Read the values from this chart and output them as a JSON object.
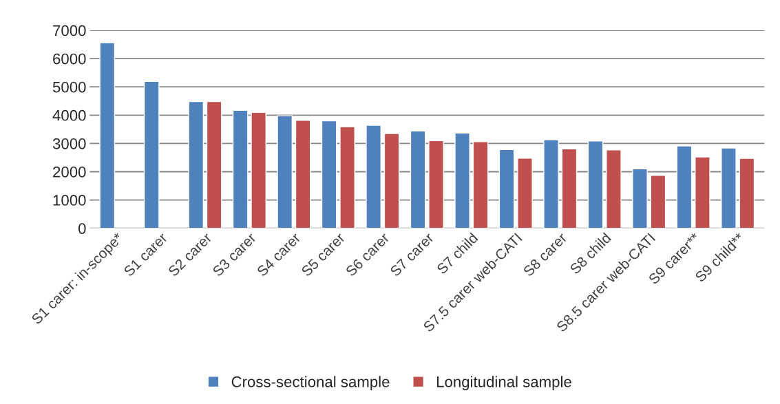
{
  "chart_data": {
    "type": "bar",
    "categories": [
      "S1 carer: in-scope*",
      "S1 carer",
      "S2 carer",
      "S3 carer",
      "S4 carer",
      "S5 carer",
      "S6 carer",
      "S7 carer",
      "S7 child",
      "S7.5 carer web-CATI",
      "S8 carer",
      "S8 child",
      "S8.5 carer web-CATI",
      "S9 carer**",
      "S9 child**"
    ],
    "series": [
      {
        "name": "Cross-sectional sample",
        "color": "#4f81bd",
        "values": [
          6560,
          5190,
          4480,
          4170,
          3980,
          3800,
          3640,
          3440,
          3370,
          2780,
          3130,
          3090,
          2100,
          2910,
          2840
        ]
      },
      {
        "name": "Longitudinal sample",
        "color": "#c0504d",
        "values": [
          null,
          null,
          4480,
          4100,
          3820,
          3590,
          3350,
          3100,
          3060,
          2480,
          2810,
          2770,
          1870,
          2520,
          2470
        ]
      }
    ],
    "ylim": [
      0,
      7000
    ],
    "yticks": [
      0,
      1000,
      2000,
      3000,
      4000,
      5000,
      6000,
      7000
    ],
    "grid": "y",
    "legend": "bottom"
  }
}
